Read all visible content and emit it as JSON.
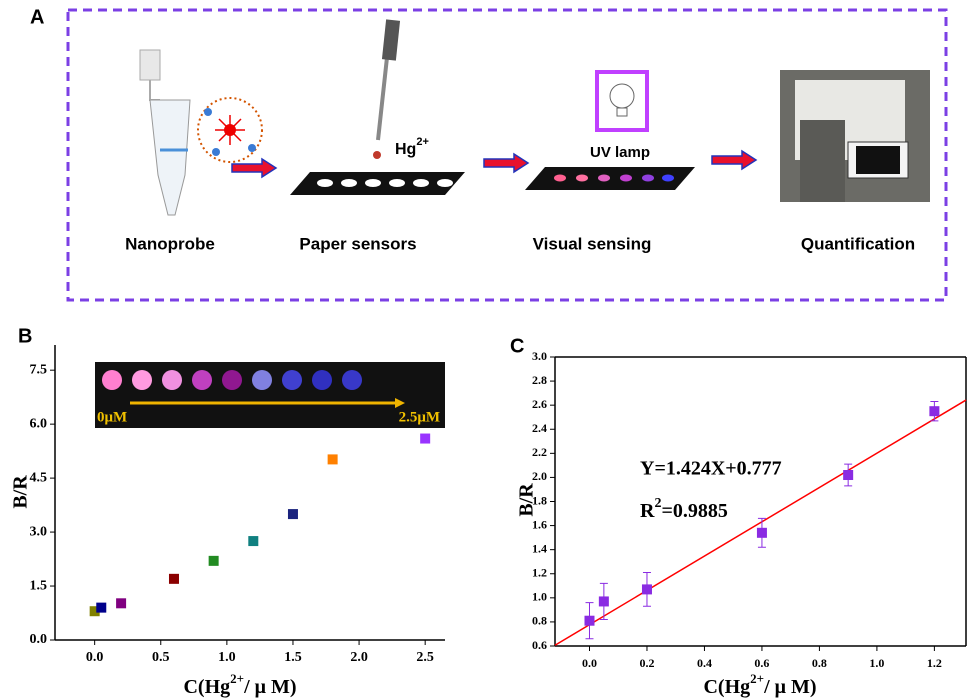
{
  "panel_a": {
    "label": "A",
    "steps": [
      "Nanoprobe",
      "Paper sensors",
      "Visual sensing",
      "Quantification"
    ],
    "hg": {
      "text": "Hg",
      "sup": "2+"
    },
    "lamp": "UV lamp"
  },
  "chart_data": [
    {
      "type": "scatter",
      "label": "B",
      "x": [
        0,
        0.05,
        0.2,
        0.6,
        0.9,
        1.2,
        1.5,
        1.8,
        2.5
      ],
      "values": [
        0.8,
        0.9,
        1.02,
        1.7,
        2.2,
        2.75,
        3.5,
        5.02,
        5.6
      ],
      "colors": [
        "#808000",
        "#00008b",
        "#800080",
        "#8b0000",
        "#228b22",
        "#108080",
        "#1a237e",
        "#ff8000",
        "#9933ff"
      ],
      "xlim": [
        -0.3,
        2.65
      ],
      "ylim": [
        0,
        8.2
      ],
      "xticks": [
        {
          "value": 0,
          "label": "0.0"
        },
        {
          "value": 0.5,
          "label": "0.5"
        },
        {
          "value": 1,
          "label": "1.0"
        },
        {
          "value": 1.5,
          "label": "1.5"
        },
        {
          "value": 2,
          "label": "2.0"
        },
        {
          "value": 2.5,
          "label": "2.5"
        }
      ],
      "yticks": [
        {
          "value": 0,
          "label": "0.0"
        },
        {
          "value": 1.5,
          "label": "1.5"
        },
        {
          "value": 3,
          "label": "3.0"
        },
        {
          "value": 4.5,
          "label": "4.5"
        },
        {
          "value": 6,
          "label": "6.0"
        },
        {
          "value": 7.5,
          "label": "7.5"
        }
      ],
      "y_label": "B/R",
      "x_label": {
        "text": "C(Hg",
        "sup": "2+",
        "tail": "/ μ M)"
      },
      "inset": {
        "start": "0μM",
        "end": "2.5μM"
      }
    },
    {
      "type": "scatter",
      "label": "C",
      "x": [
        0,
        0.05,
        0.2,
        0.6,
        0.9,
        1.2
      ],
      "values": [
        0.81,
        0.97,
        1.07,
        1.54,
        2.02,
        2.55
      ],
      "errors": [
        0.15,
        0.15,
        0.14,
        0.12,
        0.09,
        0.08
      ],
      "color": "#8a2be2",
      "fit": {
        "slope": 1.424,
        "intercept": 0.777,
        "color": "#ff0000"
      },
      "equation": "Y=1.424X+0.777",
      "r2": {
        "text": "R",
        "sup": "2",
        "tail": "=0.9885"
      },
      "xlim": [
        -0.12,
        1.31
      ],
      "ylim": [
        0.6,
        3.0
      ],
      "xticks": [
        {
          "value": 0,
          "label": "0.0"
        },
        {
          "value": 0.2,
          "label": "0.2"
        },
        {
          "value": 0.4,
          "label": "0.4"
        },
        {
          "value": 0.6,
          "label": "0.6"
        },
        {
          "value": 0.8,
          "label": "0.8"
        },
        {
          "value": 1,
          "label": "1.0"
        },
        {
          "value": 1.2,
          "label": "1.2"
        }
      ],
      "yticks": [
        {
          "value": 0.6,
          "label": "0.6"
        },
        {
          "value": 0.8,
          "label": "0.8"
        },
        {
          "value": 1,
          "label": "1.0"
        },
        {
          "value": 1.2,
          "label": "1.2"
        },
        {
          "value": 1.4,
          "label": "1.4"
        },
        {
          "value": 1.6,
          "label": "1.6"
        },
        {
          "value": 1.8,
          "label": "1.8"
        },
        {
          "value": 2,
          "label": "2.0"
        },
        {
          "value": 2.2,
          "label": "2.2"
        },
        {
          "value": 2.4,
          "label": "2.4"
        },
        {
          "value": 2.6,
          "label": "2.6"
        },
        {
          "value": 2.8,
          "label": "2.8"
        },
        {
          "value": 3,
          "label": "3.0"
        }
      ],
      "y_label": "B/R",
      "x_label": {
        "text": "C(Hg",
        "sup": "2+",
        "tail": "/ μ M)"
      }
    }
  ]
}
